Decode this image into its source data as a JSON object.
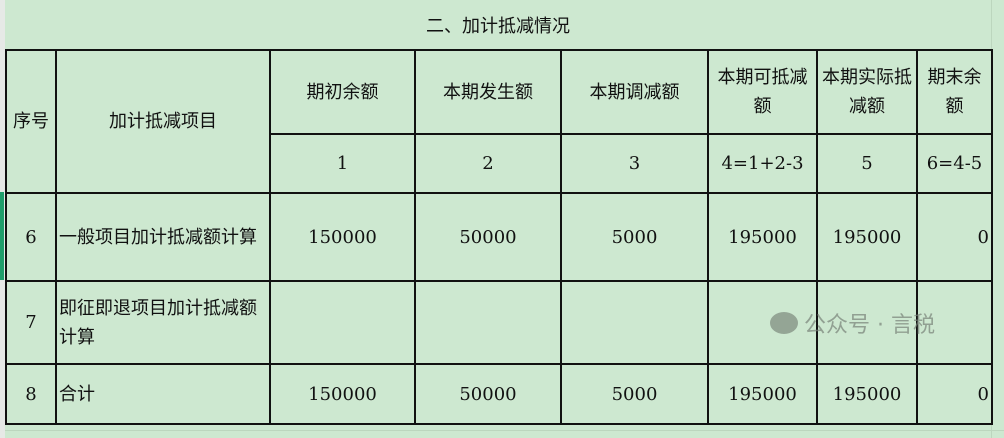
{
  "title": "二、加计抵减情况",
  "headers": {
    "seq": "序号",
    "item": "加计抵减项目",
    "c1": "期初余额",
    "c2": "本期发生额",
    "c3": "本期调减额",
    "c4": "本期可抵减额",
    "c5": "本期实际抵减额",
    "c6": "期末余额"
  },
  "formula": [
    "1",
    "2",
    "3",
    "4=1+2-3",
    "5",
    "6=4-5"
  ],
  "rows": [
    {
      "seq": "6",
      "item": "一般项目加计抵减额计算",
      "v": [
        "150000",
        "50000",
        "5000",
        "195000",
        "195000",
        "0"
      ]
    },
    {
      "seq": "7",
      "item": "即征即退项目加计抵减额计算",
      "v": [
        "",
        "",
        "",
        "",
        "",
        ""
      ]
    },
    {
      "seq": "8",
      "item": "合计",
      "v": [
        "150000",
        "50000",
        "5000",
        "195000",
        "195000",
        "0"
      ]
    }
  ],
  "watermark": "公众号 · 言税",
  "colors": {
    "cell_bg": "#cde8d0",
    "selection": "#1f9d6a"
  }
}
